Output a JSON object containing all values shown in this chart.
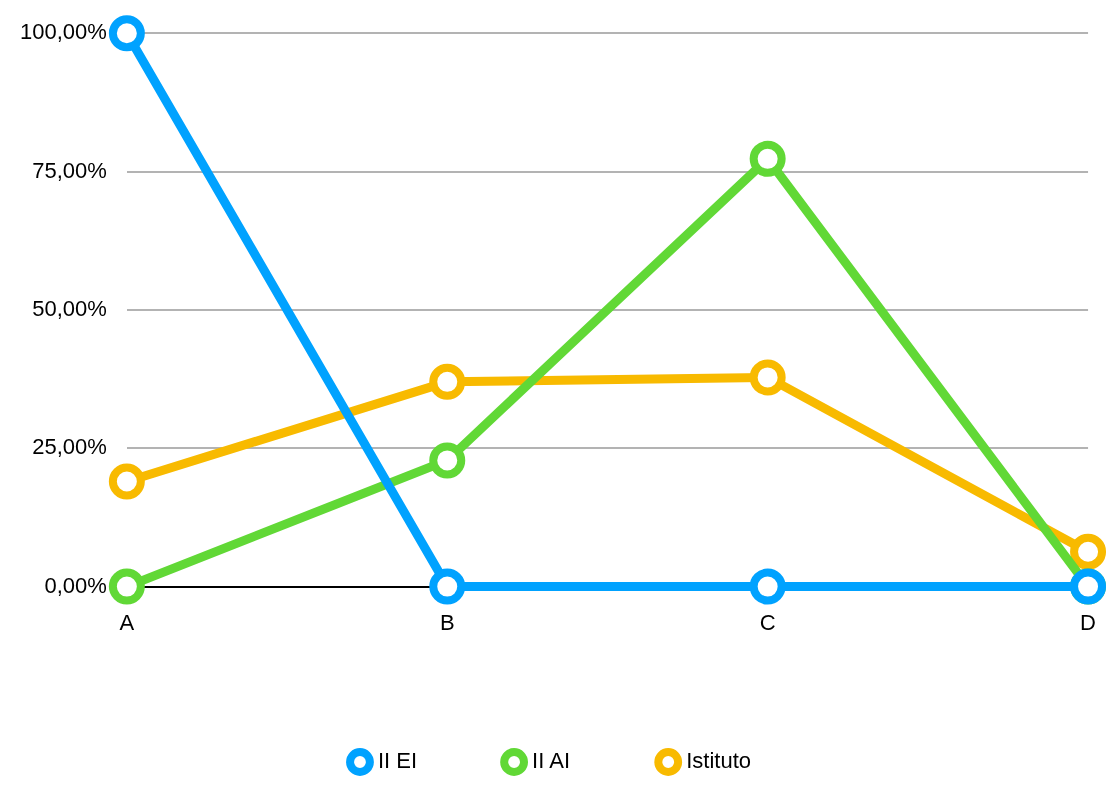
{
  "chart_data": {
    "type": "line",
    "categories": [
      "A",
      "B",
      "C",
      "D"
    ],
    "series": [
      {
        "name": "II EI",
        "color": "#00a2ff",
        "values": [
          100,
          0,
          0,
          0
        ]
      },
      {
        "name": "II AI",
        "color": "#61d836",
        "values": [
          0,
          22.8,
          77.3,
          0
        ]
      },
      {
        "name": "Istituto",
        "color": "#f8ba00",
        "values": [
          19.0,
          37.0,
          37.8,
          6.3
        ]
      }
    ],
    "ylim": [
      0,
      100
    ],
    "yticks": [
      {
        "value": 0,
        "label": "0,00%"
      },
      {
        "value": 25,
        "label": "25,00%"
      },
      {
        "value": 50,
        "label": "50,00%"
      },
      {
        "value": 75,
        "label": "75,00%"
      },
      {
        "value": 100,
        "label": "100,00%"
      }
    ],
    "grid": "y",
    "legend": "bottom",
    "marker": "circle",
    "line_style": "solid"
  }
}
